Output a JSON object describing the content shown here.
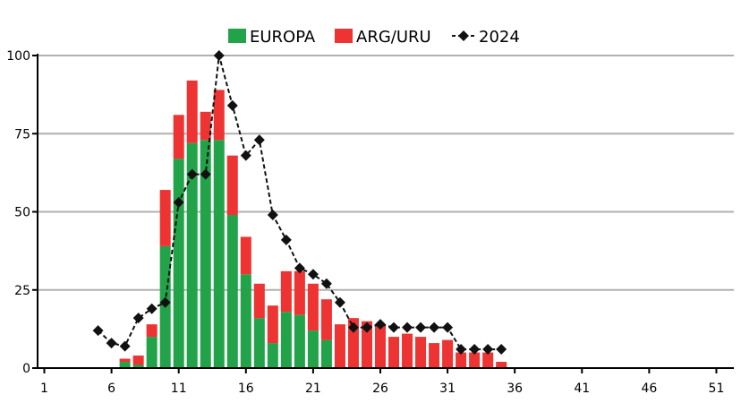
{
  "colors": {
    "europa": "#22a34a",
    "arg_uru": "#ee3333",
    "line": "#111111",
    "grid": "#b0b0b0"
  },
  "chart_data": {
    "type": "bar",
    "stacked": true,
    "grid": true,
    "legend_position": "top",
    "x": [
      1,
      2,
      3,
      4,
      5,
      6,
      7,
      8,
      9,
      10,
      11,
      12,
      13,
      14,
      15,
      16,
      17,
      18,
      19,
      20,
      21,
      22,
      23,
      24,
      25,
      26,
      27,
      28,
      29,
      30,
      31,
      32,
      33,
      34,
      35,
      36,
      37,
      38,
      39,
      40,
      41,
      42,
      43,
      44,
      45,
      46,
      47,
      48,
      49,
      50,
      51
    ],
    "x_ticks": [
      1,
      6,
      11,
      16,
      21,
      26,
      31,
      36,
      41,
      46,
      51
    ],
    "y_ticks": [
      0,
      25,
      50,
      75,
      100
    ],
    "ylim": [
      0,
      100
    ],
    "series": [
      {
        "name": "EUROPA",
        "kind": "bar",
        "values": [
          0,
          0,
          0,
          0,
          0,
          0,
          2,
          1,
          10,
          39,
          67,
          72,
          73,
          73,
          49,
          30,
          16,
          8,
          18,
          17,
          12,
          9,
          0,
          0,
          0,
          0,
          0,
          0,
          0,
          0,
          0,
          0,
          0,
          0,
          0,
          0,
          0,
          0,
          0,
          0,
          0,
          0,
          0,
          0,
          0,
          0,
          0,
          0,
          0,
          0,
          0
        ]
      },
      {
        "name": "ARG/URU",
        "kind": "bar",
        "values": [
          0,
          0,
          0,
          0,
          0,
          0,
          1,
          3,
          4,
          18,
          14,
          20,
          9,
          16,
          19,
          12,
          11,
          12,
          13,
          14,
          15,
          13,
          14,
          16,
          15,
          14,
          10,
          11,
          10,
          8,
          9,
          5,
          5,
          5,
          2,
          0,
          0,
          0,
          0,
          0,
          0,
          0,
          0,
          0,
          0,
          0,
          0,
          0,
          0,
          0,
          0
        ]
      },
      {
        "name": "2024",
        "kind": "line",
        "x": [
          5,
          6,
          7,
          8,
          9,
          10,
          11,
          12,
          13,
          14,
          15,
          16,
          17,
          18,
          19,
          20,
          21,
          22,
          23,
          24,
          25,
          26,
          27,
          28,
          29,
          30,
          31,
          32,
          33,
          34,
          35
        ],
        "values": [
          12,
          8,
          7,
          16,
          19,
          21,
          53,
          62,
          62,
          100,
          84,
          68,
          73,
          49,
          41,
          32,
          30,
          27,
          21,
          13,
          13,
          14,
          13,
          13,
          13,
          13,
          13,
          6,
          6,
          6,
          6
        ]
      }
    ]
  }
}
